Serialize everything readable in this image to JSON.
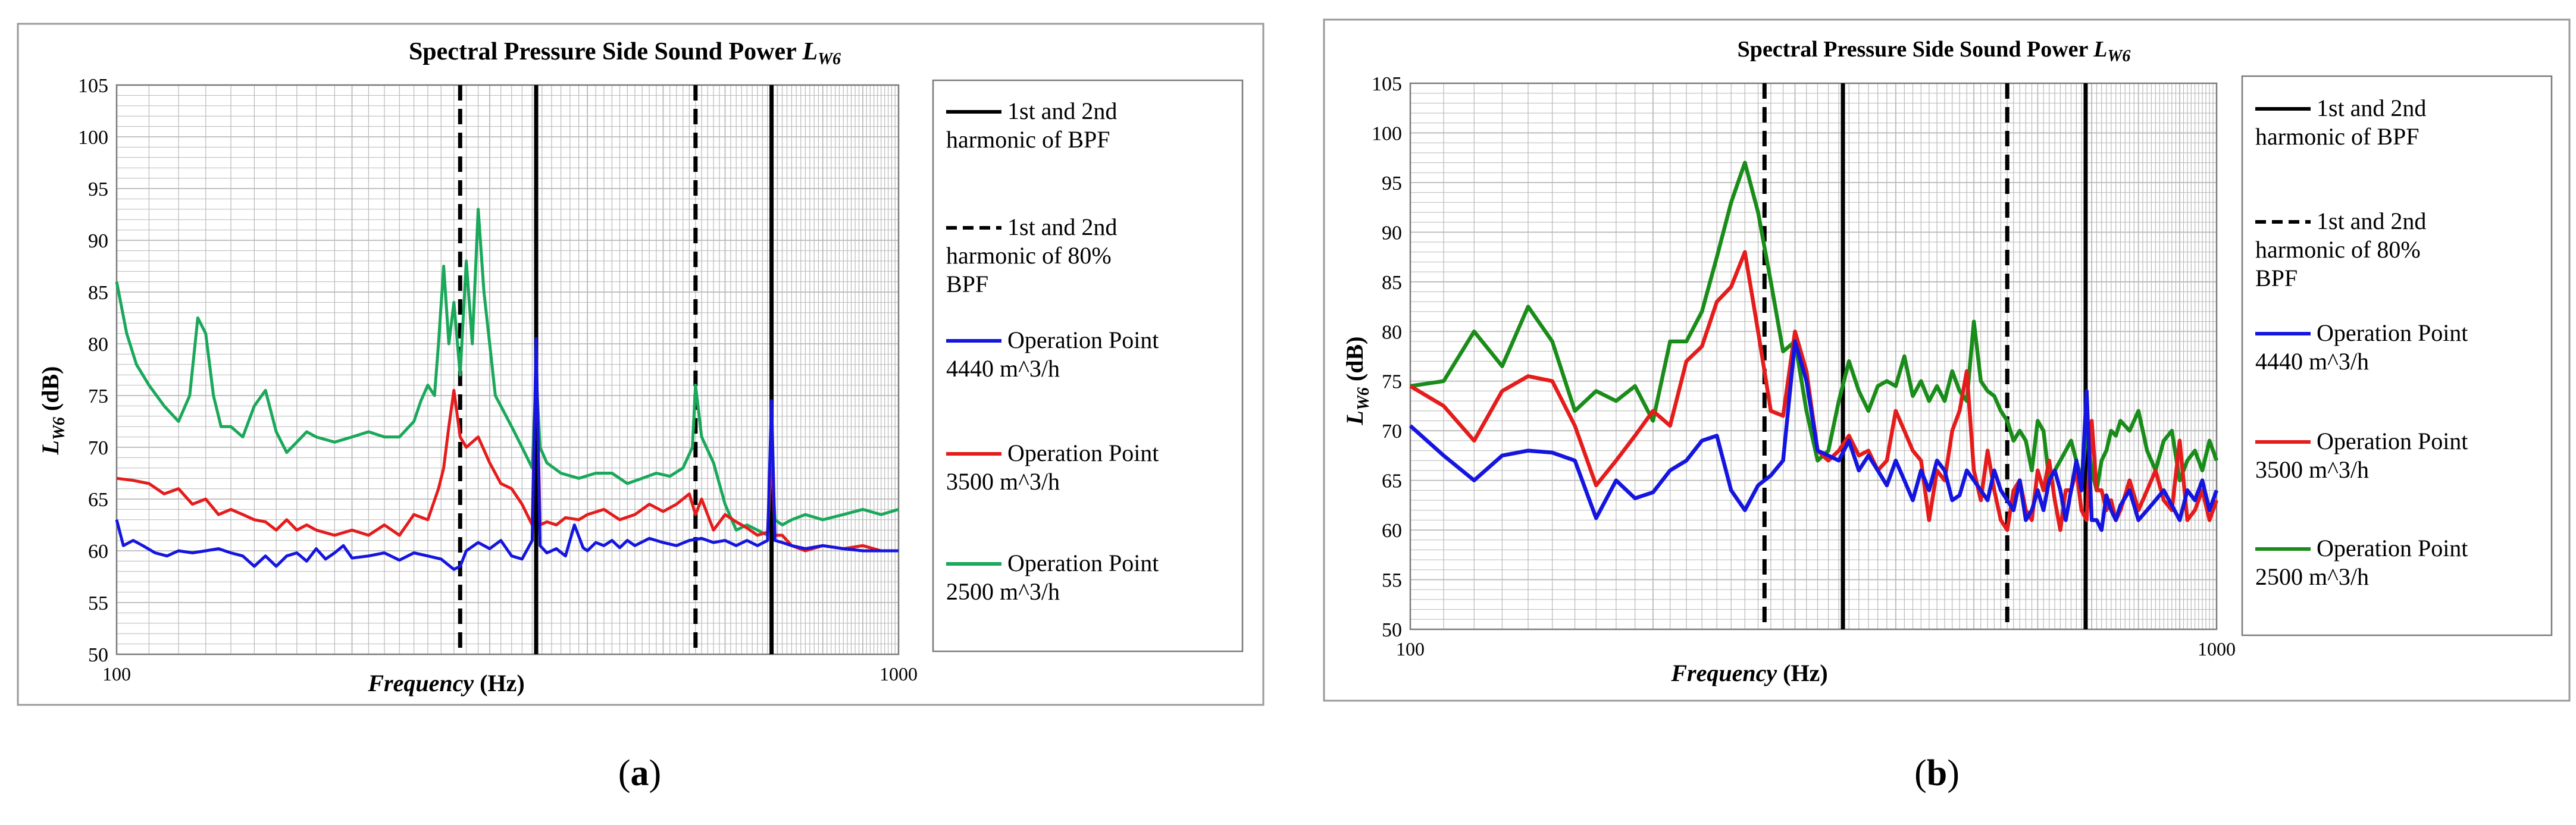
{
  "panel_labels": [
    "(a)",
    "(b)"
  ],
  "legend_labels": {
    "bpf_lines": "1st and 2nd harmonic of BPF",
    "bpf80_lines": "1st and 2nd harmonic of 80% BPF",
    "op4440": "Operation Point 4440 m^3/h",
    "op3500": "Operation Point 3500 m^3/h",
    "op2500": "Operation Point 2500 m^3/h"
  },
  "colors": {
    "op4440": "#1515e0",
    "op3500": "#e51c1c",
    "op2500_a": "#1aa85a",
    "op2500_b": "#1a8c1a",
    "grid": "#b9b9b9",
    "frame": "#9a9a9a"
  },
  "chart_data": [
    {
      "type": "line",
      "panel": "a",
      "title": "Spectral Pressure Side Sound Power L_W6",
      "xlabel": "Frequency (Hz)",
      "ylabel": "L_W6 (dB)",
      "xscale": "log",
      "xlim": [
        100,
        1000
      ],
      "ylim": [
        50,
        105
      ],
      "yticks": [
        50,
        55,
        60,
        65,
        70,
        75,
        80,
        85,
        90,
        95,
        100,
        105
      ],
      "xtick_labels": [
        "100",
        "1000"
      ],
      "grid": true,
      "legend_position": "right",
      "vertical_lines": [
        {
          "x": 275,
          "style": "dashed",
          "legend": "1st and 2nd harmonic of 80% BPF"
        },
        {
          "x": 550,
          "style": "dashed",
          "legend": "1st and 2nd harmonic of 80% BPF"
        },
        {
          "x": 344,
          "style": "solid",
          "legend": "1st and 2nd harmonic of BPF"
        },
        {
          "x": 688,
          "style": "solid",
          "legend": "1st and 2nd harmonic of BPF"
        }
      ],
      "series": [
        {
          "name": "Operation Point 4440 m^3/h",
          "color": "#1515e0",
          "x": [
            100,
            102,
            105,
            108,
            112,
            116,
            120,
            125,
            130,
            135,
            140,
            145,
            150,
            155,
            160,
            165,
            170,
            175,
            180,
            185,
            190,
            195,
            200,
            210,
            220,
            230,
            240,
            250,
            260,
            270,
            275,
            280,
            290,
            300,
            310,
            320,
            330,
            340,
            344,
            348,
            355,
            365,
            375,
            385,
            395,
            400,
            410,
            420,
            430,
            440,
            450,
            460,
            480,
            500,
            520,
            540,
            560,
            580,
            600,
            620,
            640,
            660,
            680,
            688,
            695,
            710,
            730,
            760,
            800,
            850,
            900,
            950,
            1000
          ],
          "values": [
            63,
            60.5,
            61,
            60.5,
            59.8,
            59.5,
            60,
            59.8,
            60,
            60.2,
            59.8,
            59.5,
            58.5,
            59.5,
            58.5,
            59.5,
            59.8,
            59,
            60.2,
            59.2,
            59.8,
            60.5,
            59.3,
            59.5,
            59.8,
            59.1,
            59.8,
            59.5,
            59.2,
            58.2,
            58.5,
            60,
            60.8,
            60.2,
            61,
            59.5,
            59.2,
            61,
            80.5,
            60.5,
            59.8,
            60.2,
            59.5,
            62.5,
            60.3,
            60,
            60.8,
            60.5,
            61,
            60.3,
            61,
            60.5,
            61.2,
            60.8,
            60.5,
            61,
            61.2,
            60.8,
            61,
            60.5,
            61,
            60.5,
            61,
            74.5,
            61,
            60.8,
            60.5,
            60.2,
            60.5,
            60.2,
            60,
            60,
            60
          ]
        },
        {
          "name": "Operation Point 3500 m^3/h",
          "color": "#e51c1c",
          "x": [
            100,
            105,
            110,
            115,
            120,
            125,
            130,
            135,
            140,
            145,
            150,
            155,
            160,
            165,
            170,
            175,
            180,
            190,
            200,
            210,
            220,
            230,
            240,
            250,
            258,
            262,
            266,
            270,
            275,
            280,
            290,
            300,
            310,
            320,
            330,
            340,
            344,
            348,
            355,
            365,
            375,
            390,
            400,
            420,
            440,
            460,
            480,
            500,
            520,
            540,
            550,
            560,
            580,
            600,
            620,
            640,
            660,
            680,
            688,
            695,
            710,
            730,
            760,
            800,
            850,
            900,
            950,
            1000
          ],
          "values": [
            67,
            66.8,
            66.5,
            65.5,
            66,
            64.5,
            65,
            63.5,
            64,
            63.5,
            63,
            62.8,
            62,
            63,
            62,
            62.5,
            62,
            61.5,
            62,
            61.5,
            62.5,
            61.5,
            63.5,
            63,
            66,
            68,
            72,
            75.5,
            71,
            70,
            71,
            68.5,
            66.5,
            66,
            64.5,
            62.5,
            79.5,
            62.5,
            62.8,
            62.5,
            63.2,
            63,
            63.5,
            64,
            63,
            63.5,
            64.5,
            63.8,
            64.5,
            65.5,
            63.5,
            65,
            62,
            63.5,
            62.8,
            62.2,
            61.5,
            61.8,
            70,
            61.5,
            61.5,
            60.5,
            60,
            60.5,
            60.2,
            60.5,
            60,
            60
          ]
        },
        {
          "name": "Operation Point 2500 m^3/h",
          "color": "#1aa85a",
          "x": [
            100,
            103,
            106,
            110,
            115,
            120,
            124,
            127,
            130,
            133,
            136,
            140,
            145,
            150,
            155,
            160,
            165,
            170,
            175,
            180,
            190,
            200,
            210,
            220,
            230,
            240,
            245,
            250,
            255,
            258,
            262,
            266,
            270,
            275,
            280,
            285,
            290,
            295,
            300,
            305,
            310,
            320,
            330,
            340,
            344,
            348,
            355,
            370,
            390,
            410,
            430,
            450,
            470,
            490,
            510,
            530,
            545,
            550,
            560,
            580,
            600,
            620,
            640,
            660,
            680,
            688,
            695,
            710,
            730,
            760,
            800,
            850,
            900,
            950,
            1000
          ],
          "values": [
            86,
            81,
            78,
            76,
            74,
            72.5,
            75,
            82.5,
            81,
            75,
            72,
            72,
            71,
            74,
            75.5,
            71.5,
            69.5,
            70.5,
            71.5,
            71,
            70.5,
            71,
            71.5,
            71,
            71,
            72.5,
            74.5,
            76,
            75,
            80,
            87.5,
            80,
            84,
            77,
            88,
            80,
            93,
            85,
            80,
            75,
            74,
            72,
            70,
            68,
            77,
            70,
            68.5,
            67.5,
            67,
            67.5,
            67.5,
            66.5,
            67,
            67.5,
            67.2,
            68,
            70,
            76,
            71,
            68.5,
            64.5,
            62,
            62.5,
            62,
            61.5,
            69.5,
            63,
            62.5,
            63,
            63.5,
            63,
            63.5,
            64,
            63.5,
            64
          ]
        }
      ]
    },
    {
      "type": "line",
      "panel": "b",
      "title": "Spectral Pressure Side Sound Power L_W6",
      "xlabel": "Frequency (Hz)",
      "ylabel": "L_W6 (dB)",
      "xscale": "log",
      "xlim": [
        100,
        1000
      ],
      "ylim": [
        50,
        105
      ],
      "yticks": [
        50,
        55,
        60,
        65,
        70,
        75,
        80,
        85,
        90,
        95,
        100,
        105
      ],
      "xtick_labels": [
        "100",
        "1000"
      ],
      "grid": true,
      "legend_position": "right",
      "vertical_lines": [
        {
          "x": 275,
          "style": "dashed",
          "legend": "1st and 2nd harmonic of 80% BPF"
        },
        {
          "x": 550,
          "style": "dashed",
          "legend": "1st and 2nd harmonic of 80% BPF"
        },
        {
          "x": 344,
          "style": "solid",
          "legend": "1st and 2nd harmonic of BPF"
        },
        {
          "x": 688,
          "style": "solid",
          "legend": "1st and 2nd harmonic of BPF"
        }
      ],
      "series": [
        {
          "name": "Operation Point 4440 m^3/h",
          "color": "#1515e0",
          "x": [
            100,
            110,
            120,
            130,
            140,
            150,
            160,
            170,
            180,
            190,
            200,
            210,
            220,
            230,
            240,
            250,
            260,
            270,
            280,
            290,
            300,
            310,
            320,
            330,
            340,
            350,
            360,
            370,
            380,
            390,
            400,
            410,
            420,
            430,
            440,
            450,
            460,
            470,
            480,
            490,
            500,
            510,
            520,
            530,
            540,
            550,
            560,
            570,
            580,
            590,
            600,
            610,
            620,
            630,
            640,
            650,
            660,
            670,
            680,
            690,
            700,
            710,
            720,
            730,
            740,
            750,
            760,
            780,
            800,
            820,
            840,
            860,
            880,
            900,
            920,
            940,
            960,
            980,
            1000
          ],
          "values": [
            70.5,
            67.5,
            65,
            67.5,
            68,
            67.8,
            67,
            61.2,
            65,
            63.2,
            63.8,
            66,
            67,
            69,
            69.5,
            64,
            62,
            64.5,
            65.5,
            67,
            79,
            75,
            68,
            67.5,
            67,
            69,
            66,
            67.5,
            66,
            64.5,
            67,
            65,
            63,
            66,
            64,
            67,
            66,
            63,
            63.5,
            66,
            65,
            64,
            63,
            66,
            64,
            63,
            62,
            65,
            61,
            62,
            64,
            62,
            65,
            66,
            64,
            61,
            64,
            67,
            64,
            74,
            61,
            61,
            60,
            63.5,
            62,
            61,
            62.5,
            64,
            61,
            62,
            63,
            64,
            62.5,
            61,
            64,
            63,
            65,
            62,
            64
          ]
        },
        {
          "name": "Operation Point 3500 m^3/h",
          "color": "#e51c1c",
          "x": [
            100,
            110,
            120,
            130,
            140,
            150,
            160,
            170,
            180,
            190,
            200,
            210,
            220,
            230,
            240,
            250,
            260,
            270,
            280,
            290,
            300,
            310,
            320,
            330,
            340,
            350,
            360,
            370,
            380,
            390,
            400,
            410,
            420,
            430,
            440,
            450,
            460,
            470,
            480,
            490,
            500,
            510,
            520,
            530,
            540,
            550,
            560,
            570,
            580,
            590,
            600,
            610,
            620,
            630,
            640,
            650,
            660,
            670,
            680,
            690,
            700,
            710,
            720,
            730,
            740,
            750,
            760,
            780,
            800,
            820,
            840,
            860,
            880,
            900,
            920,
            940,
            960,
            980,
            1000
          ],
          "values": [
            74.5,
            72.5,
            69,
            74,
            75.5,
            75,
            70.5,
            64.5,
            67,
            69.5,
            72,
            70.5,
            77,
            78.5,
            83,
            84.5,
            88,
            80,
            72,
            71.5,
            80,
            76,
            68,
            67,
            68,
            69.5,
            67.5,
            68,
            66,
            67,
            72,
            70,
            68,
            67,
            61,
            66,
            65,
            70,
            72,
            76,
            66,
            63,
            68,
            64,
            61,
            60,
            64,
            65,
            62,
            61,
            66,
            64,
            67,
            63,
            60,
            64,
            64,
            66,
            62,
            61,
            71,
            64,
            64,
            62,
            63,
            61,
            62,
            65,
            62,
            64,
            66,
            63,
            62,
            69,
            61,
            62,
            64,
            61,
            63
          ]
        },
        {
          "name": "Operation Point 2500 m^3/h",
          "color": "#1a8c1a",
          "x": [
            100,
            110,
            120,
            130,
            140,
            150,
            160,
            170,
            180,
            190,
            200,
            210,
            220,
            230,
            240,
            250,
            260,
            270,
            280,
            290,
            300,
            310,
            320,
            330,
            340,
            350,
            360,
            370,
            380,
            390,
            400,
            410,
            420,
            430,
            440,
            450,
            460,
            470,
            480,
            490,
            500,
            510,
            520,
            530,
            540,
            550,
            560,
            570,
            580,
            590,
            600,
            610,
            620,
            630,
            640,
            650,
            660,
            670,
            680,
            690,
            700,
            710,
            720,
            730,
            740,
            750,
            760,
            780,
            800,
            820,
            840,
            860,
            880,
            900,
            920,
            940,
            960,
            980,
            1000
          ],
          "values": [
            74.5,
            75,
            80,
            76.5,
            82.5,
            79,
            72,
            74,
            73,
            74.5,
            71,
            79,
            79,
            82,
            87.5,
            93,
            97,
            92,
            85,
            78,
            79,
            72,
            67,
            68,
            73,
            77,
            74,
            72,
            74.5,
            75,
            74.5,
            77.5,
            73.5,
            75,
            73,
            74.5,
            73,
            76,
            74,
            73,
            81,
            75,
            74,
            73.5,
            72,
            71,
            69,
            70,
            69,
            66,
            71,
            70,
            65,
            66,
            67,
            68,
            69,
            67,
            65,
            70,
            66,
            64,
            67,
            68,
            70,
            69.5,
            71,
            70,
            72,
            68,
            66,
            69,
            70,
            65,
            67,
            68,
            66,
            69,
            67
          ]
        }
      ]
    }
  ]
}
